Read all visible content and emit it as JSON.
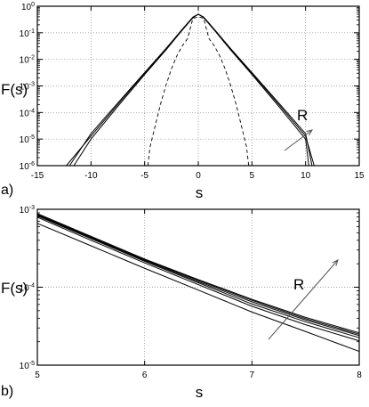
{
  "chart_data": [
    {
      "panel": "a)",
      "type": "line",
      "xlabel": "s",
      "ylabel": "F(s)",
      "xlim": [
        -15,
        15
      ],
      "ylim": [
        1e-06,
        1
      ],
      "yscale": "log",
      "grid": true,
      "xticks": [
        -15,
        -10,
        -5,
        0,
        5,
        10,
        15
      ],
      "yticks": [
        {
          "value": 1e-06,
          "base": "10",
          "exp": "-6"
        },
        {
          "value": 1e-05,
          "base": "10",
          "exp": "-5"
        },
        {
          "value": 0.0001,
          "base": "10",
          "exp": "-4"
        },
        {
          "value": 0.001,
          "base": "10",
          "exp": "-3"
        },
        {
          "value": 0.01,
          "base": "10",
          "exp": "-2"
        },
        {
          "value": 0.1,
          "base": "10",
          "exp": "-1"
        },
        {
          "value": 1,
          "base": "10",
          "exp": "0"
        }
      ],
      "annotation": "R",
      "series": [
        {
          "style": "solid",
          "x": [
            -12.3,
            -10,
            -7.5,
            -5,
            -3,
            -1.5,
            -0.5,
            0,
            0.5,
            1.5,
            3,
            5,
            7.5,
            10,
            10.8
          ],
          "y": [
            1e-06,
            1.3e-05,
            0.0002,
            0.003,
            0.025,
            0.13,
            0.38,
            0.5,
            0.38,
            0.13,
            0.025,
            0.003,
            0.0002,
            1.3e-05,
            1e-06
          ]
        },
        {
          "style": "solid",
          "x": [
            -12.0,
            -10,
            -7.5,
            -5,
            -3,
            -1.5,
            -0.5,
            0,
            0.5,
            1.5,
            3,
            5,
            7.5,
            10,
            10.6
          ],
          "y": [
            1e-06,
            1.6e-05,
            0.00023,
            0.0032,
            0.026,
            0.135,
            0.39,
            0.5,
            0.39,
            0.135,
            0.026,
            0.0032,
            0.00023,
            1.6e-05,
            1e-06
          ]
        },
        {
          "style": "solid",
          "x": [
            -11.6,
            -10,
            -7.5,
            -5,
            -3,
            -1.5,
            -0.5,
            0,
            0.5,
            1.5,
            3,
            5,
            7.5,
            10,
            10.3
          ],
          "y": [
            1e-06,
            1e-05,
            0.00017,
            0.0027,
            0.023,
            0.125,
            0.37,
            0.5,
            0.37,
            0.125,
            0.023,
            0.0027,
            0.00017,
            1e-05,
            1e-06
          ]
        },
        {
          "style": "dashed",
          "x": [
            -4.7,
            -4.5,
            -4,
            -3.5,
            -3,
            -2.5,
            -2,
            -1.5,
            -1,
            -0.5,
            0,
            0.5,
            1,
            1.5,
            2,
            2.5,
            3,
            3.5,
            4,
            4.5,
            4.7
          ],
          "y": [
            1e-06,
            5e-06,
            3.4e-05,
            0.00022,
            0.0011,
            0.0044,
            0.0135,
            0.032,
            0.06,
            0.35,
            0.4,
            0.35,
            0.06,
            0.032,
            0.0135,
            0.0044,
            0.0011,
            0.00022,
            3.4e-05,
            5e-06,
            1e-06
          ]
        }
      ]
    },
    {
      "panel": "b)",
      "type": "line",
      "xlabel": "s",
      "ylabel": "F(s)",
      "xlim": [
        5,
        8
      ],
      "ylim": [
        1e-05,
        0.001
      ],
      "yscale": "log",
      "grid": true,
      "xticks": [
        5,
        6,
        7,
        8
      ],
      "yticks": [
        {
          "value": 1e-05,
          "base": "10",
          "exp": "-5"
        },
        {
          "value": 0.0001,
          "base": "10",
          "exp": "-4"
        },
        {
          "value": 0.001,
          "base": "10",
          "exp": "-3"
        }
      ],
      "annotation": "R",
      "series": [
        {
          "style": "solid",
          "x": [
            5,
            5.5,
            6,
            6.5,
            7,
            7.5,
            8
          ],
          "y": [
            0.00088,
            0.00045,
            0.00023,
            0.000125,
            7e-05,
            4.1e-05,
            2.6e-05
          ]
        },
        {
          "style": "solid",
          "x": [
            5,
            5.5,
            6,
            6.5,
            7,
            7.5,
            8
          ],
          "y": [
            0.00086,
            0.00044,
            0.000225,
            0.000122,
            6.8e-05,
            3.95e-05,
            2.5e-05
          ]
        },
        {
          "style": "solid",
          "x": [
            5,
            5.5,
            6,
            6.5,
            7,
            7.5,
            8
          ],
          "y": [
            0.00084,
            0.00043,
            0.00022,
            0.000118,
            6.5e-05,
            3.8e-05,
            2.4e-05
          ]
        },
        {
          "style": "solid",
          "x": [
            5,
            5.5,
            6,
            6.5,
            7,
            7.5,
            8
          ],
          "y": [
            0.00082,
            0.00042,
            0.000215,
            0.000114,
            6.1e-05,
            3.6e-05,
            2.25e-05
          ]
        },
        {
          "style": "solid",
          "x": [
            5,
            5.5,
            6,
            6.5,
            7,
            7.5,
            8
          ],
          "y": [
            0.00079,
            0.0004,
            0.000205,
            0.000108,
            5.7e-05,
            3.3e-05,
            2.05e-05
          ]
        },
        {
          "style": "solid",
          "x": [
            5,
            5.5,
            6,
            6.5,
            7,
            7.5,
            8
          ],
          "y": [
            0.00066,
            0.00034,
            0.000175,
            9.2e-05,
            4.8e-05,
            2.7e-05,
            1.5e-05
          ]
        }
      ]
    }
  ]
}
